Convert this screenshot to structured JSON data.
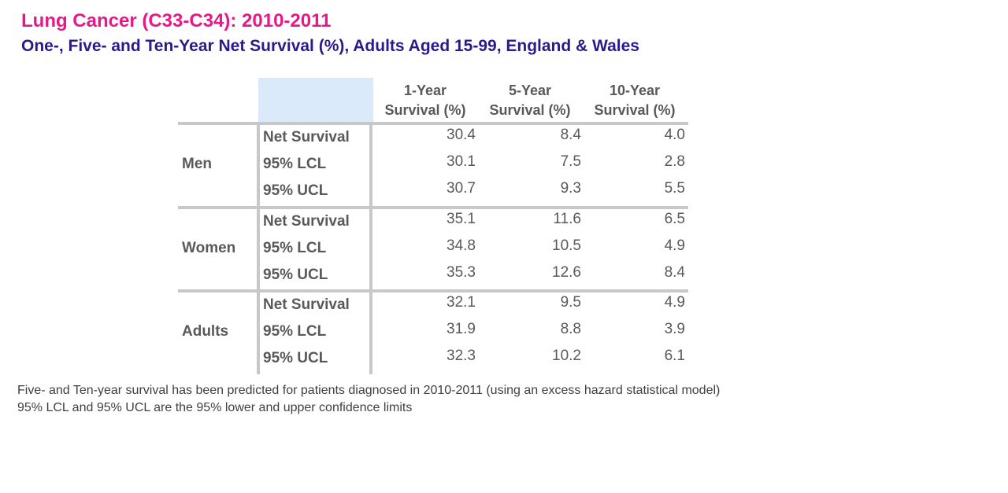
{
  "title": "Lung Cancer (C33-C34): 2010-2011",
  "subtitle": "One-, Five- and Ten-Year Net Survival (%), Adults Aged 15-99, England & Wales",
  "colors": {
    "title": "#e6198a",
    "subtitle": "#2b1a8c",
    "text": "#595959",
    "header_shade": "#dbeafa",
    "rule": "#c8c8c8"
  },
  "chart_data": {
    "type": "table",
    "columns": [
      [
        "1-Year",
        "Survival (%)"
      ],
      [
        "5-Year",
        "Survival (%)"
      ],
      [
        "10-Year",
        "Survival (%)"
      ]
    ],
    "groups": [
      {
        "label": "Men",
        "rows": [
          {
            "label": "Net Survival",
            "values": [
              "30.4",
              "8.4",
              "4.0"
            ]
          },
          {
            "label": "95% LCL",
            "values": [
              "30.1",
              "7.5",
              "2.8"
            ]
          },
          {
            "label": "95% UCL",
            "values": [
              "30.7",
              "9.3",
              "5.5"
            ]
          }
        ]
      },
      {
        "label": "Women",
        "rows": [
          {
            "label": "Net Survival",
            "values": [
              "35.1",
              "11.6",
              "6.5"
            ]
          },
          {
            "label": "95% LCL",
            "values": [
              "34.8",
              "10.5",
              "4.9"
            ]
          },
          {
            "label": "95% UCL",
            "values": [
              "35.3",
              "12.6",
              "8.4"
            ]
          }
        ]
      },
      {
        "label": "Adults",
        "rows": [
          {
            "label": "Net Survival",
            "values": [
              "32.1",
              "9.5",
              "4.9"
            ]
          },
          {
            "label": "95% LCL",
            "values": [
              "31.9",
              "8.8",
              "3.9"
            ]
          },
          {
            "label": "95% UCL",
            "values": [
              "32.3",
              "10.2",
              "6.1"
            ]
          }
        ]
      }
    ]
  },
  "notes": [
    "Five- and Ten-year survival has been predicted for patients diagnosed in 2010-2011 (using an excess hazard statistical model)",
    "95% LCL and 95% UCL are the 95% lower and upper confidence limits"
  ]
}
